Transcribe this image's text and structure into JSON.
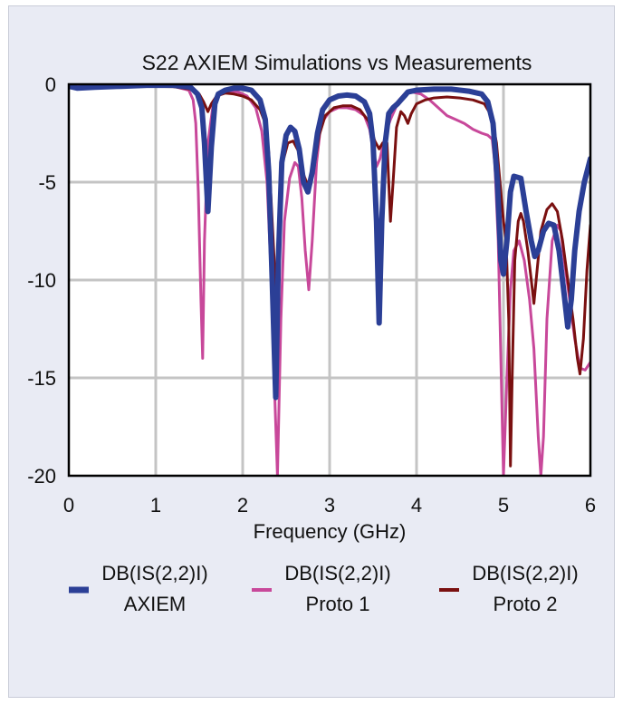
{
  "chart_data": {
    "type": "line",
    "title": "S22 AXIEM Simulations vs Measurements",
    "xlabel": "Frequency (GHz)",
    "ylabel": "",
    "xlim": [
      0,
      6
    ],
    "ylim": [
      -20,
      0
    ],
    "x_ticks": [
      "0",
      "1",
      "2",
      "3",
      "4",
      "5",
      "6"
    ],
    "y_ticks": [
      "0",
      "-5",
      "-10",
      "-15",
      "-20"
    ],
    "grid": true,
    "legend_position": "bottom",
    "series": [
      {
        "name": "DB(|S(2,2)|) AXIEM",
        "legend_line1": "DB(IS(2,2)I)",
        "legend_line2": "AXIEM",
        "color": "#2b3f96",
        "width": 6,
        "points": [
          [
            0.0,
            -0.1
          ],
          [
            0.1,
            -0.2
          ],
          [
            0.3,
            -0.15
          ],
          [
            0.6,
            -0.1
          ],
          [
            0.9,
            -0.05
          ],
          [
            1.2,
            -0.05
          ],
          [
            1.4,
            -0.15
          ],
          [
            1.48,
            -0.5
          ],
          [
            1.53,
            -1.2
          ],
          [
            1.56,
            -3.0
          ],
          [
            1.6,
            -6.5
          ],
          [
            1.64,
            -3.2
          ],
          [
            1.68,
            -1.0
          ],
          [
            1.72,
            -0.5
          ],
          [
            1.8,
            -0.3
          ],
          [
            1.9,
            -0.2
          ],
          [
            2.0,
            -0.2
          ],
          [
            2.1,
            -0.3
          ],
          [
            2.2,
            -0.8
          ],
          [
            2.26,
            -1.8
          ],
          [
            2.3,
            -4.5
          ],
          [
            2.34,
            -10.0
          ],
          [
            2.38,
            -16.0
          ],
          [
            2.41,
            -9.0
          ],
          [
            2.45,
            -4.0
          ],
          [
            2.5,
            -2.6
          ],
          [
            2.55,
            -2.2
          ],
          [
            2.6,
            -2.4
          ],
          [
            2.65,
            -3.3
          ],
          [
            2.7,
            -5.0
          ],
          [
            2.75,
            -5.5
          ],
          [
            2.8,
            -4.5
          ],
          [
            2.86,
            -2.5
          ],
          [
            2.92,
            -1.3
          ],
          [
            3.0,
            -0.8
          ],
          [
            3.1,
            -0.6
          ],
          [
            3.2,
            -0.55
          ],
          [
            3.3,
            -0.6
          ],
          [
            3.4,
            -0.9
          ],
          [
            3.46,
            -1.5
          ],
          [
            3.5,
            -3.0
          ],
          [
            3.54,
            -7.0
          ],
          [
            3.57,
            -12.2
          ],
          [
            3.6,
            -7.0
          ],
          [
            3.64,
            -3.0
          ],
          [
            3.68,
            -1.5
          ],
          [
            3.73,
            -1.2
          ],
          [
            3.78,
            -1.0
          ],
          [
            3.82,
            -0.8
          ],
          [
            3.86,
            -0.6
          ],
          [
            3.9,
            -0.4
          ],
          [
            4.0,
            -0.3
          ],
          [
            4.2,
            -0.25
          ],
          [
            4.4,
            -0.25
          ],
          [
            4.6,
            -0.35
          ],
          [
            4.75,
            -0.5
          ],
          [
            4.82,
            -0.9
          ],
          [
            4.88,
            -2.0
          ],
          [
            4.93,
            -5.0
          ],
          [
            4.97,
            -9.0
          ],
          [
            5.0,
            -9.7
          ],
          [
            5.04,
            -8.0
          ],
          [
            5.08,
            -5.5
          ],
          [
            5.12,
            -4.7
          ],
          [
            5.2,
            -4.8
          ],
          [
            5.26,
            -6.5
          ],
          [
            5.32,
            -8.0
          ],
          [
            5.36,
            -8.8
          ],
          [
            5.4,
            -8.5
          ],
          [
            5.46,
            -7.5
          ],
          [
            5.52,
            -7.1
          ],
          [
            5.58,
            -7.2
          ],
          [
            5.64,
            -8.5
          ],
          [
            5.7,
            -10.8
          ],
          [
            5.74,
            -12.4
          ],
          [
            5.78,
            -11.0
          ],
          [
            5.82,
            -8.5
          ],
          [
            5.87,
            -6.5
          ],
          [
            5.93,
            -5.0
          ],
          [
            6.0,
            -3.8
          ]
        ]
      },
      {
        "name": "DB(|S(2,2)|) Proto 1",
        "legend_line1": "DB(IS(2,2)I)",
        "legend_line2": "Proto 1",
        "color": "#c8489a",
        "width": 3,
        "points": [
          [
            0.0,
            -0.1
          ],
          [
            0.2,
            -0.1
          ],
          [
            0.5,
            -0.05
          ],
          [
            0.9,
            -0.05
          ],
          [
            1.2,
            -0.1
          ],
          [
            1.38,
            -0.3
          ],
          [
            1.43,
            -0.8
          ],
          [
            1.46,
            -2.0
          ],
          [
            1.49,
            -5.5
          ],
          [
            1.52,
            -11.0
          ],
          [
            1.54,
            -14.0
          ],
          [
            1.56,
            -8.0
          ],
          [
            1.6,
            -3.0
          ],
          [
            1.66,
            -1.0
          ],
          [
            1.74,
            -0.5
          ],
          [
            1.85,
            -0.35
          ],
          [
            1.95,
            -0.4
          ],
          [
            2.05,
            -0.6
          ],
          [
            2.15,
            -1.2
          ],
          [
            2.22,
            -2.4
          ],
          [
            2.28,
            -5.0
          ],
          [
            2.33,
            -10.0
          ],
          [
            2.37,
            -16.0
          ],
          [
            2.4,
            -20.0
          ],
          [
            2.44,
            -12.0
          ],
          [
            2.48,
            -7.0
          ],
          [
            2.54,
            -4.8
          ],
          [
            2.6,
            -4.0
          ],
          [
            2.64,
            -4.2
          ],
          [
            2.68,
            -5.8
          ],
          [
            2.72,
            -8.5
          ],
          [
            2.76,
            -10.5
          ],
          [
            2.8,
            -8.0
          ],
          [
            2.85,
            -4.0
          ],
          [
            2.9,
            -2.0
          ],
          [
            3.0,
            -1.4
          ],
          [
            3.1,
            -1.2
          ],
          [
            3.2,
            -1.2
          ],
          [
            3.3,
            -1.3
          ],
          [
            3.4,
            -1.6
          ],
          [
            3.46,
            -2.3
          ],
          [
            3.5,
            -3.3
          ],
          [
            3.54,
            -4.2
          ],
          [
            3.58,
            -3.8
          ],
          [
            3.62,
            -3.0
          ],
          [
            3.66,
            -2.3
          ],
          [
            3.7,
            -1.8
          ],
          [
            3.75,
            -1.3
          ],
          [
            3.8,
            -0.8
          ],
          [
            3.86,
            -0.5
          ],
          [
            3.95,
            -0.4
          ],
          [
            4.05,
            -0.5
          ],
          [
            4.15,
            -0.8
          ],
          [
            4.25,
            -1.2
          ],
          [
            4.35,
            -1.6
          ],
          [
            4.45,
            -1.8
          ],
          [
            4.55,
            -2.0
          ],
          [
            4.65,
            -2.3
          ],
          [
            4.75,
            -2.5
          ],
          [
            4.82,
            -2.6
          ],
          [
            4.87,
            -2.8
          ],
          [
            4.9,
            -4.0
          ],
          [
            4.94,
            -8.0
          ],
          [
            4.97,
            -14.0
          ],
          [
            5.0,
            -20.0
          ],
          [
            5.04,
            -15.0
          ],
          [
            5.08,
            -10.5
          ],
          [
            5.12,
            -8.5
          ],
          [
            5.18,
            -8.0
          ],
          [
            5.24,
            -9.0
          ],
          [
            5.3,
            -11.0
          ],
          [
            5.35,
            -13.5
          ],
          [
            5.4,
            -18.0
          ],
          [
            5.43,
            -20.0
          ],
          [
            5.46,
            -18.0
          ],
          [
            5.5,
            -12.0
          ],
          [
            5.56,
            -8.0
          ],
          [
            5.62,
            -7.2
          ],
          [
            5.66,
            -7.5
          ],
          [
            5.7,
            -9.0
          ],
          [
            5.76,
            -11.0
          ],
          [
            5.82,
            -13.0
          ],
          [
            5.88,
            -14.5
          ],
          [
            5.94,
            -14.6
          ],
          [
            6.0,
            -14.2
          ]
        ]
      },
      {
        "name": "DB(|S(2,2)|) Proto 2",
        "legend_line1": "DB(IS(2,2)I)",
        "legend_line2": "Proto 2",
        "color": "#7a1010",
        "width": 3,
        "points": [
          [
            0.0,
            -0.15
          ],
          [
            0.2,
            -0.15
          ],
          [
            0.5,
            -0.1
          ],
          [
            0.9,
            -0.1
          ],
          [
            1.2,
            -0.12
          ],
          [
            1.4,
            -0.25
          ],
          [
            1.5,
            -0.5
          ],
          [
            1.55,
            -0.9
          ],
          [
            1.6,
            -1.4
          ],
          [
            1.64,
            -1.0
          ],
          [
            1.7,
            -0.6
          ],
          [
            1.8,
            -0.45
          ],
          [
            1.9,
            -0.5
          ],
          [
            2.0,
            -0.6
          ],
          [
            2.1,
            -0.8
          ],
          [
            2.2,
            -1.3
          ],
          [
            2.26,
            -2.0
          ],
          [
            2.3,
            -3.5
          ],
          [
            2.34,
            -7.0
          ],
          [
            2.38,
            -10.5
          ],
          [
            2.42,
            -7.0
          ],
          [
            2.46,
            -4.0
          ],
          [
            2.52,
            -3.0
          ],
          [
            2.58,
            -2.9
          ],
          [
            2.64,
            -3.4
          ],
          [
            2.7,
            -4.6
          ],
          [
            2.76,
            -5.3
          ],
          [
            2.82,
            -4.3
          ],
          [
            2.88,
            -2.6
          ],
          [
            2.95,
            -1.6
          ],
          [
            3.05,
            -1.2
          ],
          [
            3.15,
            -1.1
          ],
          [
            3.25,
            -1.1
          ],
          [
            3.35,
            -1.3
          ],
          [
            3.45,
            -1.9
          ],
          [
            3.52,
            -2.9
          ],
          [
            3.57,
            -3.3
          ],
          [
            3.61,
            -3.0
          ],
          [
            3.66,
            -3.0
          ],
          [
            3.7,
            -7.0
          ],
          [
            3.73,
            -5.0
          ],
          [
            3.77,
            -2.2
          ],
          [
            3.82,
            -1.4
          ],
          [
            3.86,
            -1.6
          ],
          [
            3.9,
            -2.0
          ],
          [
            3.94,
            -1.5
          ],
          [
            4.0,
            -1.0
          ],
          [
            4.1,
            -0.8
          ],
          [
            4.2,
            -0.7
          ],
          [
            4.35,
            -0.65
          ],
          [
            4.5,
            -0.7
          ],
          [
            4.65,
            -0.8
          ],
          [
            4.78,
            -1.0
          ],
          [
            4.86,
            -1.6
          ],
          [
            4.92,
            -3.0
          ],
          [
            4.97,
            -5.5
          ],
          [
            5.0,
            -7.0
          ],
          [
            5.03,
            -8.0
          ],
          [
            5.06,
            -12.0
          ],
          [
            5.08,
            -19.5
          ],
          [
            5.1,
            -15.0
          ],
          [
            5.13,
            -9.0
          ],
          [
            5.17,
            -7.0
          ],
          [
            5.2,
            -6.6
          ],
          [
            5.23,
            -7.0
          ],
          [
            5.28,
            -8.5
          ],
          [
            5.32,
            -10.0
          ],
          [
            5.35,
            -11.2
          ],
          [
            5.38,
            -9.8
          ],
          [
            5.43,
            -7.5
          ],
          [
            5.5,
            -6.4
          ],
          [
            5.56,
            -6.1
          ],
          [
            5.62,
            -6.5
          ],
          [
            5.68,
            -8.0
          ],
          [
            5.74,
            -10.0
          ],
          [
            5.8,
            -12.0
          ],
          [
            5.85,
            -14.0
          ],
          [
            5.88,
            -14.8
          ],
          [
            5.92,
            -13.0
          ],
          [
            5.96,
            -9.5
          ],
          [
            6.0,
            -7.2
          ]
        ]
      }
    ]
  }
}
